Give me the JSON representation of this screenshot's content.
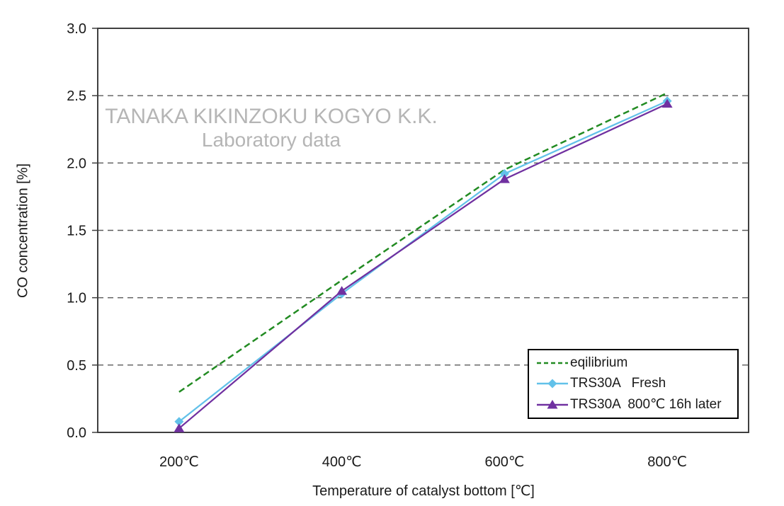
{
  "watermark": {
    "line1": "TANAKA KIKINZOKU KOGYO K.K.",
    "line2": "Laboratory data",
    "color": "#b5b5b5"
  },
  "chart_data": {
    "type": "line",
    "xlabel": "Temperature of catalyst bottom [℃]",
    "ylabel": "CO concentration [%]",
    "categories": [
      "200℃",
      "400℃",
      "600℃",
      "800℃"
    ],
    "ylim": [
      0,
      3.0
    ],
    "ytick_labels": [
      "0.0",
      "0.5",
      "1.0",
      "1.5",
      "2.0",
      "2.5",
      "3.0"
    ],
    "grid": "horizontal-dashed",
    "legend_position": "inside-bottom-right",
    "colors": {
      "frame": "#3f3f3f",
      "gridline": "#5a5a5a",
      "tick_text": "#1a1a1a"
    },
    "series": [
      {
        "name": "eqilibrium",
        "color": "#228b22",
        "line_style": "dashed",
        "marker": "none",
        "values": [
          0.3,
          1.13,
          1.95,
          2.52
        ]
      },
      {
        "name": "TRS30A   Fresh",
        "color": "#62c1e9",
        "line_style": "solid",
        "marker": "diamond",
        "values": [
          0.08,
          1.03,
          1.92,
          2.46
        ]
      },
      {
        "name": "TRS30A  800℃ 16h later",
        "color": "#7030a0",
        "line_style": "solid",
        "marker": "triangle",
        "values": [
          0.03,
          1.05,
          1.88,
          2.44
        ]
      }
    ]
  }
}
